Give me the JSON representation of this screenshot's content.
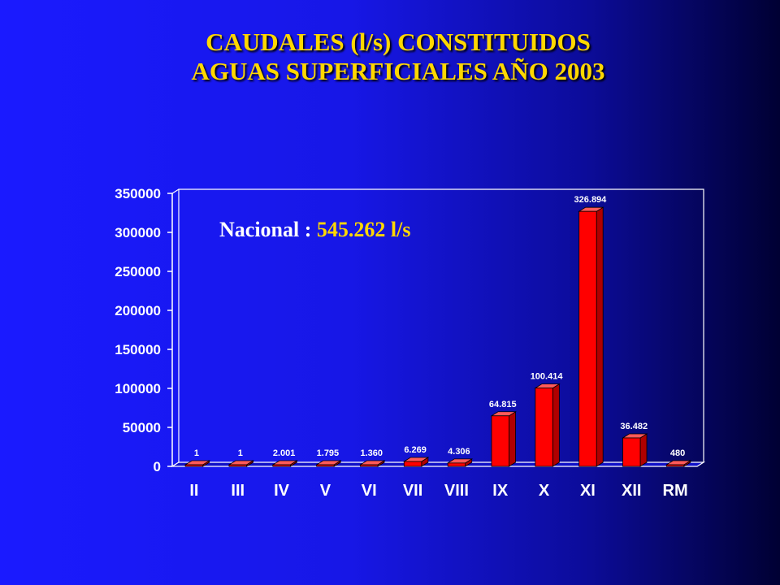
{
  "title": {
    "line1": "CAUDALES (l/s) CONSTITUIDOS",
    "line2": "AGUAS SUPERFICIALES AÑO 2003"
  },
  "annotation": {
    "label": "Nacional : ",
    "value": "545.262 l/s"
  },
  "colors": {
    "bar": "#ff0000",
    "bar_side": "#b00000",
    "bar_top": "#ff5a5a",
    "title": "#ffd700"
  },
  "chart_data": {
    "type": "bar",
    "title": "CAUDALES (l/s) CONSTITUIDOS AGUAS SUPERFICIALES AÑO 2003",
    "xlabel": "",
    "ylabel": "",
    "ylim": [
      0,
      350000
    ],
    "yticks": [
      0,
      50000,
      100000,
      150000,
      200000,
      250000,
      300000,
      350000
    ],
    "ytick_labels": [
      "0",
      "50000",
      "100000",
      "150000",
      "200000",
      "250000",
      "300000",
      "350000"
    ],
    "categories": [
      "II",
      "III",
      "IV",
      "V",
      "VI",
      "VII",
      "VIII",
      "IX",
      "X",
      "XI",
      "XII",
      "RM"
    ],
    "values": [
      1,
      1,
      2001,
      1795,
      1360,
      6269,
      4306,
      64815,
      100414,
      326894,
      36482,
      480
    ],
    "value_labels": [
      "1",
      "1",
      "2.001",
      "1.795",
      "1.360",
      "6.269",
      "4.306",
      "64.815",
      "100.414",
      "326.894",
      "36.482",
      "480"
    ],
    "grid": false,
    "legend": "none",
    "style": "3d"
  }
}
